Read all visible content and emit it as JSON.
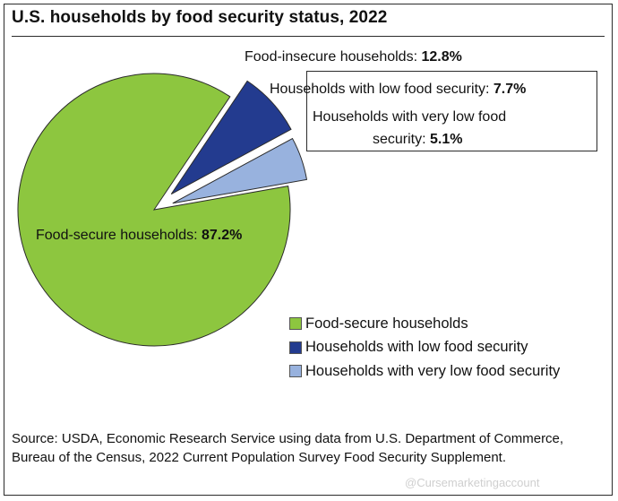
{
  "title": "U.S. households by food security status, 2022",
  "chart_data": {
    "type": "pie",
    "title": "U.S. households by food security status, 2022",
    "unit": "%",
    "slices": [
      {
        "name": "Food-secure households",
        "value": 87.2,
        "color": "#8dc63f"
      },
      {
        "name": "Households with low food security",
        "value": 7.7,
        "color": "#233b8f"
      },
      {
        "name": "Households with very low food security",
        "value": 5.1,
        "color": "#98b2de"
      }
    ],
    "labels": {
      "secure_text": "Food-secure households: ",
      "secure_value": "87.2%",
      "insecure_text": "Food-insecure households: ",
      "insecure_value": "12.8%",
      "low_text": "Households with low food security: ",
      "low_value": "7.7%",
      "very_low_line1": "Households with very low food",
      "very_low_line2_text": "security: ",
      "very_low_value": "5.1%"
    },
    "legend_position": "bottom-right",
    "exploded": [
      "Households with low food security",
      "Households with very low food security"
    ]
  },
  "legend": [
    {
      "label": "Food-secure households",
      "color": "#8dc63f"
    },
    {
      "label": "Households with low food security",
      "color": "#233b8f"
    },
    {
      "label": "Households with very low food security",
      "color": "#98b2de"
    }
  ],
  "source": "Source: USDA, Economic Research Service using data from U.S. Department of Commerce, Bureau of the Census, 2022 Current Population Survey Food Security Supplement.",
  "watermark": "@Cursemarketingaccount"
}
